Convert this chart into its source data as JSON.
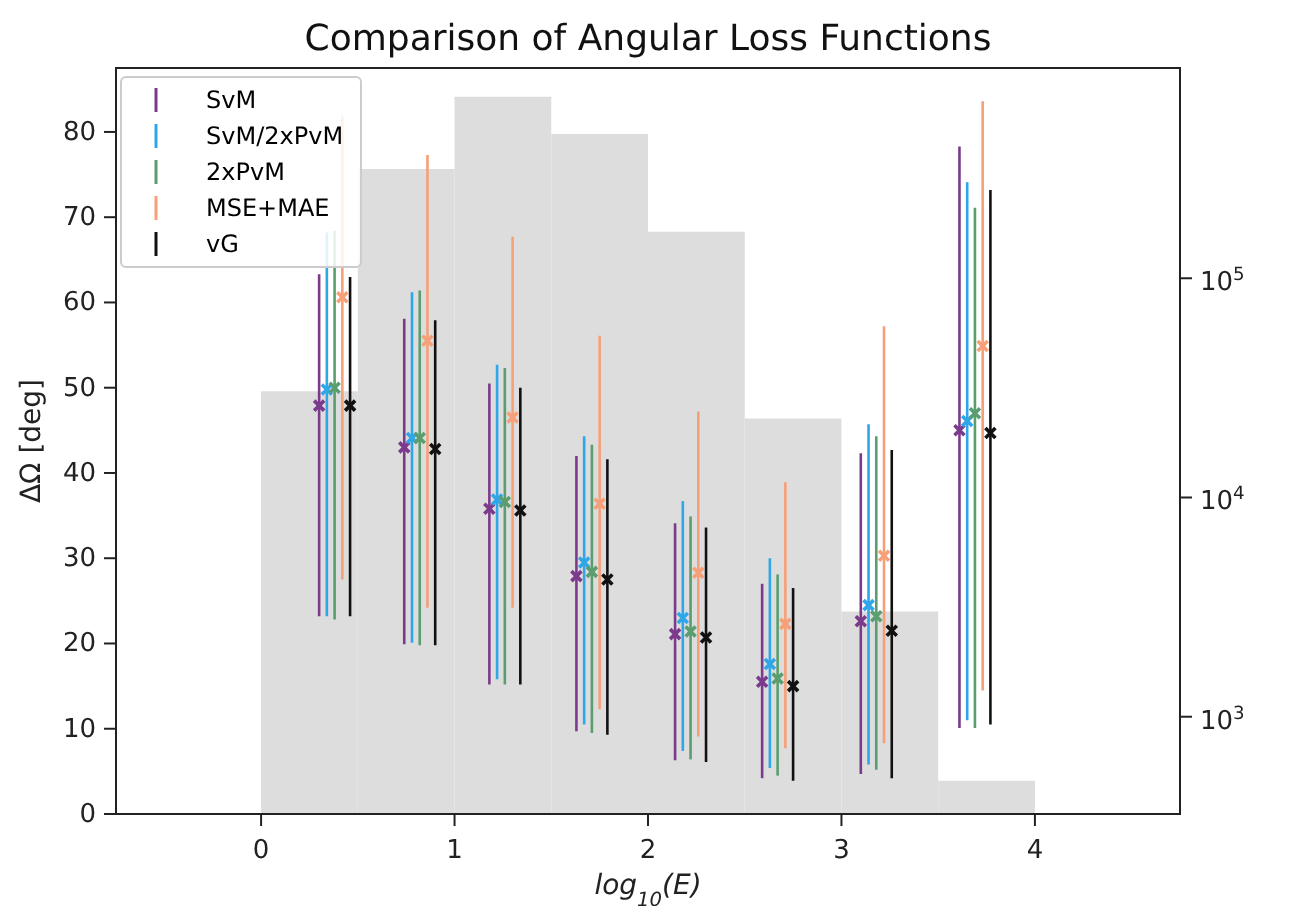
{
  "chart_data": {
    "type": "scatter",
    "title": "Comparison of Angular Loss Functions",
    "xlabel": "log$_{10}$(E)",
    "ylabel": "ΔΩ [deg]",
    "xlim": [
      -0.75,
      4.75
    ],
    "xticks": [
      0,
      1,
      2,
      3,
      4
    ],
    "ylim": [
      0,
      87.5
    ],
    "yticks": [
      0,
      10,
      20,
      30,
      40,
      50,
      60,
      70,
      80
    ],
    "y2lim": [
      360,
      910000
    ],
    "y2ticks": [
      {
        "value": 1000,
        "label": "10$^{3}$"
      },
      {
        "value": 10000,
        "label": "10$^{4}$"
      },
      {
        "value": 100000,
        "label": "10$^{5}$"
      }
    ],
    "log": "y2",
    "grid": false,
    "legend": "top left",
    "marker": "cross",
    "series": [
      {
        "type": "histogram",
        "axis": "y2",
        "color": "#dddddd",
        "bins": [
          0,
          0.5,
          1,
          1.5,
          2,
          2.5,
          3,
          3.5,
          4
        ],
        "values": [
          30500,
          315000,
          672000,
          455000,
          163000,
          22900,
          3020,
          510
        ]
      },
      {
        "name": "SvM",
        "color": "#7b3a8c",
        "x": [
          0.3,
          0.74,
          1.18,
          1.63,
          2.14,
          2.59,
          3.1,
          3.61
        ],
        "values": [
          47.9,
          43.0,
          35.8,
          27.9,
          21.1,
          15.5,
          22.6,
          45.0
        ],
        "errors": [
          [
            23.2,
            63.3
          ],
          [
            19.9,
            58.1
          ],
          [
            15.2,
            50.5
          ],
          [
            9.7,
            42.0
          ],
          [
            6.3,
            34.1
          ],
          [
            4.2,
            27.0
          ],
          [
            4.7,
            42.3
          ],
          [
            10.1,
            78.3
          ]
        ]
      },
      {
        "name": "SvM/2xPvM",
        "color": "#2ea6e8",
        "x": [
          0.34,
          0.78,
          1.22,
          1.67,
          2.18,
          2.63,
          3.14,
          3.65
        ],
        "values": [
          49.8,
          44.1,
          36.9,
          29.5,
          23.0,
          17.6,
          24.5,
          46.1
        ],
        "errors": [
          [
            23.2,
            68.2
          ],
          [
            20.1,
            61.2
          ],
          [
            15.8,
            52.7
          ],
          [
            10.5,
            44.3
          ],
          [
            7.4,
            36.7
          ],
          [
            5.4,
            30.0
          ],
          [
            5.8,
            45.7
          ],
          [
            11.0,
            74.1
          ]
        ]
      },
      {
        "name": "2xPvM",
        "color": "#5a9e6f",
        "x": [
          0.38,
          0.82,
          1.26,
          1.71,
          2.22,
          2.67,
          3.18,
          3.69
        ],
        "values": [
          50.0,
          44.1,
          36.6,
          28.4,
          21.4,
          15.9,
          23.2,
          47.0
        ],
        "errors": [
          [
            22.8,
            68.4
          ],
          [
            19.8,
            61.4
          ],
          [
            15.2,
            52.3
          ],
          [
            9.5,
            43.3
          ],
          [
            6.4,
            34.9
          ],
          [
            4.5,
            28.1
          ],
          [
            5.2,
            44.3
          ],
          [
            10.1,
            71.1
          ]
        ]
      },
      {
        "name": "MSE+MAE",
        "color": "#f5a078",
        "x": [
          0.42,
          0.86,
          1.3,
          1.75,
          2.26,
          2.71,
          3.22,
          3.73
        ],
        "values": [
          60.6,
          55.5,
          46.5,
          36.4,
          28.3,
          22.3,
          30.3,
          54.9
        ],
        "errors": [
          [
            27.5,
            81.8
          ],
          [
            24.2,
            77.3
          ],
          [
            24.2,
            67.7
          ],
          [
            12.3,
            56.1
          ],
          [
            9.1,
            47.2
          ],
          [
            7.7,
            38.9
          ],
          [
            8.3,
            57.2
          ],
          [
            14.5,
            83.6
          ]
        ]
      },
      {
        "name": "vG",
        "color": "#111111",
        "x": [
          0.46,
          0.9,
          1.34,
          1.79,
          2.3,
          2.75,
          3.26,
          3.77
        ],
        "values": [
          47.9,
          42.8,
          35.6,
          27.5,
          20.7,
          15.0,
          21.5,
          44.7
        ],
        "errors": [
          [
            23.2,
            63.0
          ],
          [
            19.8,
            57.9
          ],
          [
            15.2,
            50.0
          ],
          [
            9.3,
            41.6
          ],
          [
            6.1,
            33.6
          ],
          [
            3.9,
            26.5
          ],
          [
            4.2,
            42.7
          ],
          [
            10.5,
            73.2
          ]
        ]
      }
    ]
  }
}
